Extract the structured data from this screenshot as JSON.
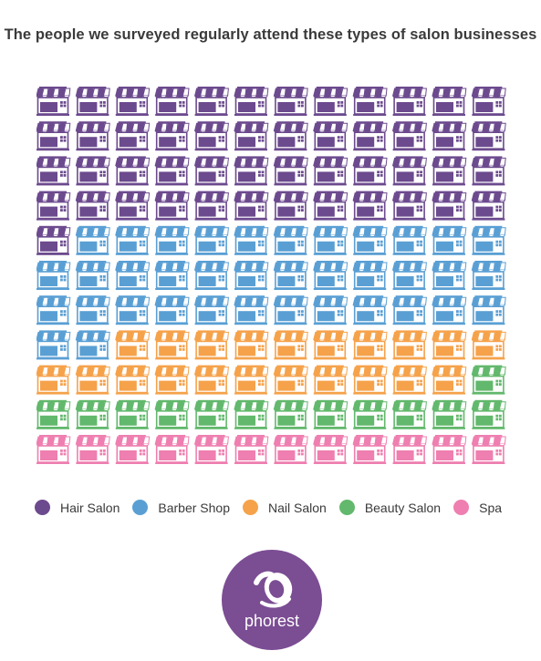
{
  "title": "The people we surveyed regularly attend these types of salon businesses",
  "chart_data": {
    "type": "waffle",
    "title": "The people we surveyed regularly attend these types of salon businesses",
    "columns": 12,
    "rows": 11,
    "icon": "storefront-icon",
    "categories": [
      "Hair Salon",
      "Barber Shop",
      "Nail Salon",
      "Beauty Salon",
      "Spa"
    ],
    "values": [
      49,
      37,
      21,
      13,
      12
    ],
    "colors": [
      "#6c4a8e",
      "#5a9fd4",
      "#f5a24b",
      "#62b86c",
      "#ee7fb0"
    ]
  },
  "legend": {
    "items": [
      {
        "label": "Hair Salon",
        "color": "#6c4a8e"
      },
      {
        "label": "Barber Shop",
        "color": "#5a9fd4"
      },
      {
        "label": "Nail Salon",
        "color": "#f5a24b"
      },
      {
        "label": "Beauty Salon",
        "color": "#62b86c"
      },
      {
        "label": "Spa",
        "color": "#ee7fb0"
      }
    ]
  },
  "logo": {
    "text": "phorest",
    "color": "#7b4d93"
  }
}
